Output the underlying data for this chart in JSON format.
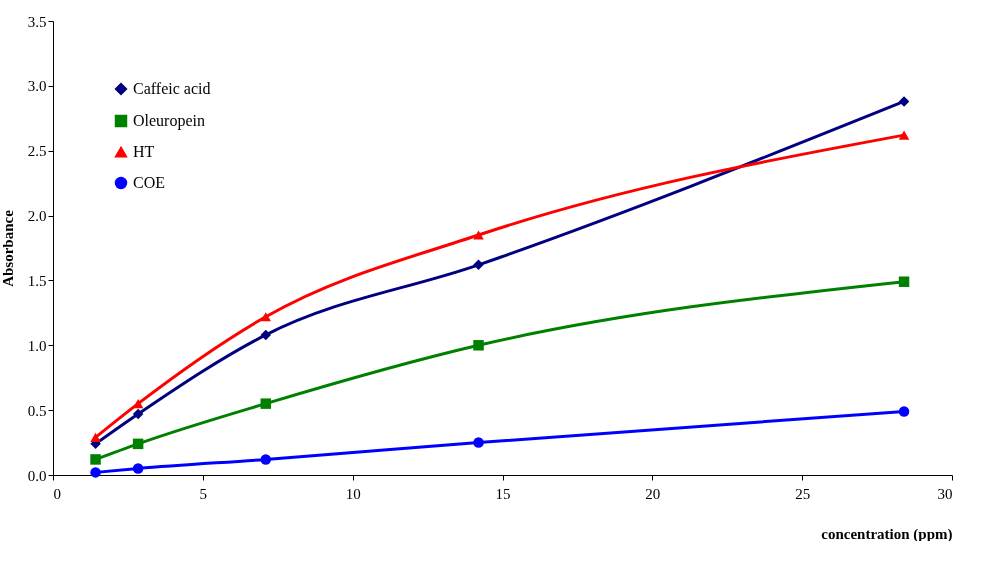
{
  "chart_data": {
    "type": "line",
    "xlabel": "concentration (ppm)",
    "ylabel": "Absorbance",
    "x": [
      1.42,
      2.84,
      7.1,
      14.2,
      28.4
    ],
    "series": [
      {
        "name": "Caffeic acid",
        "color": "#000080",
        "marker": "diamond",
        "values": [
          0.24,
          0.47,
          1.08,
          1.62,
          2.88
        ]
      },
      {
        "name": "Oleuropein",
        "color": "#008000",
        "marker": "square",
        "values": [
          0.12,
          0.24,
          0.55,
          1.0,
          1.49
        ]
      },
      {
        "name": "HT",
        "color": "#ff0000",
        "marker": "triangle",
        "values": [
          0.29,
          0.55,
          1.22,
          1.85,
          2.62
        ]
      },
      {
        "name": "COE",
        "color": "#0000ff",
        "marker": "circle",
        "values": [
          0.02,
          0.05,
          0.12,
          0.25,
          0.49
        ]
      }
    ],
    "xlim": [
      0,
      30
    ],
    "xticks": [
      0,
      5,
      10,
      15,
      20,
      25,
      30
    ],
    "ylim": [
      0,
      3.5
    ],
    "yticks": [
      {
        "value": 0,
        "label": "0.0"
      },
      {
        "value": 0.5,
        "label": "0.5"
      },
      {
        "value": 1,
        "label": "1.0"
      },
      {
        "value": 1.5,
        "label": "1.5"
      },
      {
        "value": 2,
        "label": "2.0"
      },
      {
        "value": 2.5,
        "label": "2.5"
      },
      {
        "value": 3,
        "label": "3.0"
      },
      {
        "value": 3.5,
        "label": "3.5"
      }
    ],
    "grid": false,
    "legend": "top left",
    "line_style": "solid"
  }
}
